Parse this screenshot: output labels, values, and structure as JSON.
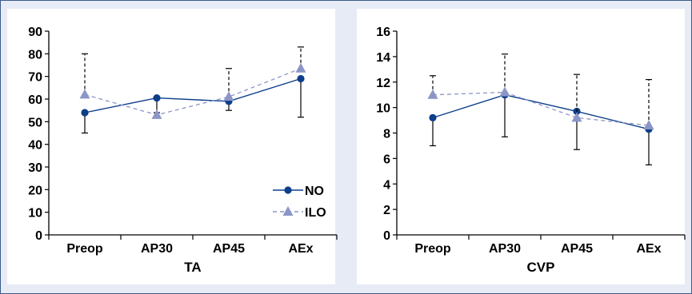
{
  "colors": {
    "background": "#e6ebf6",
    "panel": "#ffffff",
    "border": "#3a5a8c",
    "series_no": "#0d3e8a",
    "series_ilo": "#8b96c8",
    "axis": "#000000"
  },
  "chart_data": [
    {
      "type": "line",
      "xlabel": "TA",
      "ylabel": "",
      "categories": [
        "Preop",
        "AP30",
        "AP45",
        "AEx"
      ],
      "ylim": [
        0,
        90
      ],
      "yticks": [
        0,
        10,
        20,
        30,
        40,
        50,
        60,
        70,
        80,
        90
      ],
      "grid": false,
      "legend": "bottom-right",
      "series": [
        {
          "name": "NO",
          "marker": "circle",
          "line": "solid",
          "values": [
            54,
            60.5,
            59,
            69
          ],
          "error_low": [
            45,
            54,
            55,
            52
          ],
          "error_high": [
            54,
            60.5,
            59,
            69
          ]
        },
        {
          "name": "ILO",
          "marker": "triangle",
          "line": "dashed",
          "values": [
            62,
            53,
            61,
            73.5
          ],
          "error_low": [
            62,
            53,
            61,
            73.5
          ],
          "error_high": [
            80,
            53,
            73.5,
            83
          ]
        }
      ]
    },
    {
      "type": "line",
      "xlabel": "CVP",
      "ylabel": "",
      "categories": [
        "Preop",
        "AP30",
        "AP45",
        "AEx"
      ],
      "ylim": [
        0,
        16
      ],
      "yticks": [
        0,
        2,
        4,
        6,
        8,
        10,
        12,
        14,
        16
      ],
      "grid": false,
      "legend": "none",
      "series": [
        {
          "name": "NO",
          "marker": "circle",
          "line": "solid",
          "values": [
            9.2,
            11,
            9.7,
            8.3
          ],
          "error_low": [
            7,
            7.7,
            6.7,
            5.5
          ],
          "error_high": [
            9.2,
            11,
            9.7,
            8.3
          ]
        },
        {
          "name": "ILO",
          "marker": "triangle",
          "line": "dashed",
          "values": [
            11,
            11.2,
            9.2,
            8.6
          ],
          "error_low": [
            11,
            11.2,
            9.2,
            8.6
          ],
          "error_high": [
            12.5,
            14.2,
            12.6,
            12.2
          ]
        }
      ]
    }
  ]
}
